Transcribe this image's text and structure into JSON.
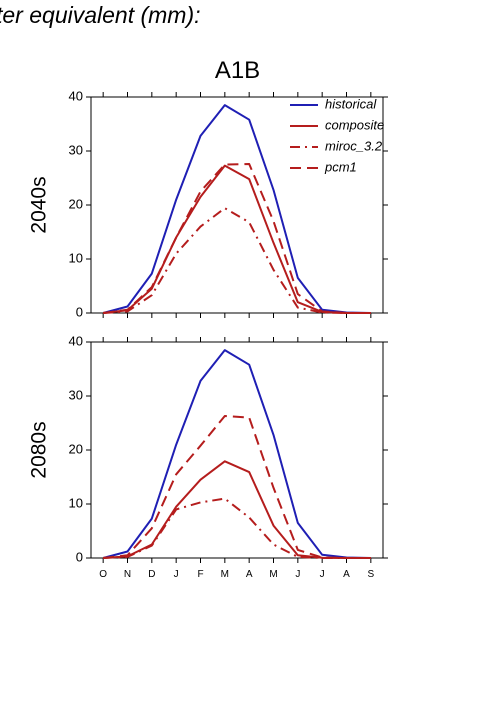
{
  "page": {
    "title": "ter equivalent (mm):",
    "scenario": "A1B"
  },
  "colors": {
    "historical": "#1f1fb4",
    "scenario": "#b51d1d"
  },
  "chart_data": [
    {
      "type": "line",
      "panel_label": "2040s",
      "categories": [
        "O",
        "N",
        "D",
        "J",
        "F",
        "M",
        "A",
        "M",
        "J",
        "J",
        "A",
        "S"
      ],
      "ylim": [
        0,
        40
      ],
      "yticks": [
        0,
        10,
        20,
        30,
        40
      ],
      "show_x_tick_labels": false,
      "legend": {
        "position": "top-right"
      },
      "series": [
        {
          "name": "historical",
          "style": "solid",
          "color": "#1f1fb4",
          "values": [
            0,
            1.2,
            7.3,
            21,
            32.8,
            38.5,
            35.8,
            22.8,
            6.5,
            0.6,
            0.1,
            0
          ]
        },
        {
          "name": "composite",
          "style": "solid",
          "color": "#b51d1d",
          "values": [
            0,
            0.5,
            4.5,
            14,
            21.5,
            27.3,
            24.8,
            13,
            2,
            0.2,
            0,
            0
          ]
        },
        {
          "name": "miroc_3.2",
          "style": "dashdot",
          "color": "#b51d1d",
          "values": [
            0,
            0.3,
            3.3,
            11,
            16,
            19.4,
            16.8,
            8,
            1,
            0.1,
            0,
            0
          ]
        },
        {
          "name": "pcm1",
          "style": "dash",
          "color": "#b51d1d",
          "values": [
            0,
            0.6,
            4.8,
            14,
            22.5,
            27.5,
            27.6,
            17,
            3.5,
            0.3,
            0,
            0
          ]
        }
      ]
    },
    {
      "type": "line",
      "panel_label": "2080s",
      "categories": [
        "O",
        "N",
        "D",
        "J",
        "F",
        "M",
        "A",
        "M",
        "J",
        "J",
        "A",
        "S"
      ],
      "ylim": [
        0,
        40
      ],
      "yticks": [
        0,
        10,
        20,
        30,
        40
      ],
      "show_x_tick_labels": true,
      "series": [
        {
          "name": "historical",
          "style": "solid",
          "color": "#1f1fb4",
          "values": [
            0,
            1.2,
            7.3,
            21,
            32.8,
            38.5,
            35.8,
            22.8,
            6.5,
            0.6,
            0.1,
            0
          ]
        },
        {
          "name": "composite",
          "style": "solid",
          "color": "#b51d1d",
          "values": [
            0,
            0.3,
            2.5,
            9.5,
            14.5,
            17.9,
            15.9,
            6,
            0.5,
            0.05,
            0,
            0
          ]
        },
        {
          "name": "miroc_3.2",
          "style": "dashdot",
          "color": "#b51d1d",
          "values": [
            0,
            0.2,
            2.3,
            9,
            10.3,
            11,
            7.5,
            2.5,
            0.2,
            0,
            0,
            0
          ]
        },
        {
          "name": "pcm1",
          "style": "dash",
          "color": "#b51d1d",
          "values": [
            0,
            0.5,
            5.5,
            15.5,
            20.8,
            26.3,
            26,
            13,
            1.5,
            0.1,
            0,
            0
          ]
        }
      ]
    }
  ]
}
